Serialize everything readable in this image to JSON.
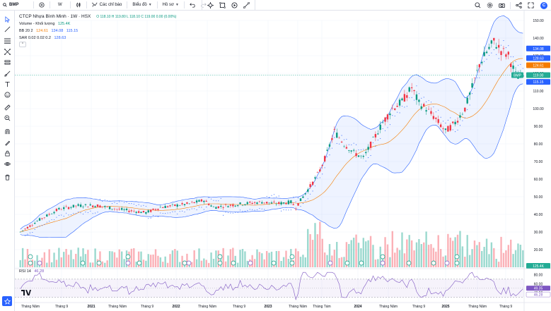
{
  "topbar": {
    "symbol": "BMP",
    "interval": "W",
    "indicators_label": "Các chỉ báo",
    "chart_type_label": "Biểu đồ",
    "profile_label": "Hồ sơ",
    "avatar_letter": "C"
  },
  "legend": {
    "title": "CTCP Nhựa Bình Minh · 1W · HSX",
    "ohlc": "O 118.10  H 119.80  L 118.10  C 119.00  0.00 (0.00%)",
    "volume_label": "Volume - Khối lượng",
    "volume_value": "125.4K",
    "bb_label": "BB 20 2",
    "bb_mid": "124.61",
    "bb_upper": "134.08",
    "bb_lower": "115.15",
    "sar_label": "SAR 0.02 0.02 0.2",
    "sar_value": "128.63",
    "collapse": "⌃"
  },
  "rsi": {
    "label": "RSI 14",
    "value": "46.28"
  },
  "price_scale": {
    "ticks": [
      "150.00",
      "140.00",
      "130.00",
      "120.00",
      "110.00",
      "100.00",
      "90.00",
      "80.00",
      "70.00",
      "60.00",
      "50.00",
      "40.00",
      "30.00",
      "20.00",
      "10.00"
    ],
    "badges": {
      "upper": "134.08",
      "sar": "128.63",
      "mid": "124.61",
      "last": "119.00",
      "lower": "115.15",
      "volume": "125.4K"
    },
    "last_symbol": "BMP"
  },
  "rsi_scale": {
    "ticks": [
      "80.00",
      "60.00",
      "40.00"
    ],
    "badges": [
      "46.28",
      "49.35"
    ]
  },
  "time_axis": {
    "labels": [
      "Tháng Năm",
      "Tháng 9",
      "2021",
      "Tháng Năm",
      "Tháng 9",
      "2022",
      "Tháng Năm",
      "Tháng 9",
      "2023",
      "Tháng Năm",
      "Tháng Tám",
      "2024",
      "Tháng Năm",
      "Tháng 9",
      "2025",
      "Tháng Năm",
      "Tháng 9"
    ]
  },
  "colors": {
    "up": "#089981",
    "down": "#f23645",
    "bb_fill": "#2962ff",
    "bb_mid": "#f57c00",
    "sar": "#2962ff",
    "rsi": "#7e57c2"
  },
  "chart_data": {
    "type": "candlestick",
    "series_anchors": [
      [
        0,
        30
      ],
      [
        8,
        37
      ],
      [
        16,
        43
      ],
      [
        24,
        45
      ],
      [
        32,
        45
      ],
      [
        40,
        43
      ],
      [
        46,
        42
      ],
      [
        52,
        41
      ],
      [
        58,
        44
      ],
      [
        64,
        45
      ],
      [
        70,
        46
      ],
      [
        76,
        48
      ],
      [
        80,
        44
      ],
      [
        86,
        45
      ],
      [
        92,
        46
      ],
      [
        100,
        47
      ],
      [
        106,
        46
      ],
      [
        112,
        47
      ],
      [
        114,
        44
      ],
      [
        118,
        52
      ],
      [
        121,
        58
      ],
      [
        124,
        65
      ],
      [
        127,
        75
      ],
      [
        130,
        87
      ],
      [
        134,
        80
      ],
      [
        138,
        75
      ],
      [
        142,
        72
      ],
      [
        146,
        82
      ],
      [
        150,
        92
      ],
      [
        154,
        100
      ],
      [
        158,
        104
      ],
      [
        162,
        112
      ],
      [
        165,
        103
      ],
      [
        168,
        100
      ],
      [
        172,
        94
      ],
      [
        176,
        87
      ],
      [
        180,
        92
      ],
      [
        184,
        100
      ],
      [
        187,
        112
      ],
      [
        190,
        125
      ],
      [
        193,
        132
      ],
      [
        196,
        138
      ],
      [
        199,
        133
      ],
      [
        202,
        130
      ],
      [
        205,
        119
      ],
      [
        208,
        117
      ]
    ],
    "bar_count": 209,
    "price_range": [
      10,
      150
    ]
  }
}
